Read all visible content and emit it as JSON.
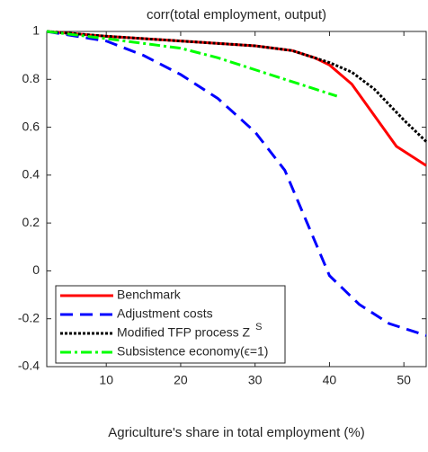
{
  "chart_data": {
    "type": "line",
    "title": "corr(total employment, output)",
    "x_label": "Agriculture's share in total employment (%)",
    "xlim": [
      2,
      53
    ],
    "xticks": [
      10,
      20,
      30,
      40,
      50
    ],
    "ylim": [
      -0.4,
      1
    ],
    "yticks": [
      -0.4,
      -0.2,
      0,
      0.2,
      0.4,
      0.6,
      0.8,
      1
    ],
    "legend": "lower left",
    "series": [
      {
        "name": "Benchmark",
        "color": "#ff0000",
        "style": "solid",
        "x": [
          2,
          10,
          20,
          30,
          35,
          38,
          40,
          43,
          46,
          49,
          53
        ],
        "values": [
          1,
          0.98,
          0.96,
          0.94,
          0.92,
          0.89,
          0.86,
          0.78,
          0.65,
          0.52,
          0.44
        ]
      },
      {
        "name": "Adjustment costs",
        "color": "#0000ff",
        "style": "dashed",
        "x": [
          2,
          10,
          15,
          20,
          25,
          30,
          34,
          37,
          40,
          44,
          48,
          53
        ],
        "values": [
          1,
          0.96,
          0.9,
          0.82,
          0.72,
          0.58,
          0.42,
          0.2,
          -0.02,
          -0.14,
          -0.22,
          -0.27
        ]
      },
      {
        "name": "Modified TFP process Z",
        "superscript": "S",
        "color": "#000000",
        "style": "dotted",
        "x": [
          2,
          10,
          20,
          30,
          35,
          38,
          40,
          43,
          46,
          50,
          53
        ],
        "values": [
          1,
          0.98,
          0.96,
          0.94,
          0.92,
          0.89,
          0.87,
          0.83,
          0.76,
          0.63,
          0.54
        ]
      },
      {
        "name": "Subsistence economy(ϵ=1)",
        "color": "#00ff00",
        "style": "dashdot",
        "x": [
          2,
          10,
          20,
          25,
          30,
          35,
          38,
          41
        ],
        "values": [
          1,
          0.97,
          0.93,
          0.89,
          0.84,
          0.79,
          0.76,
          0.73
        ]
      }
    ]
  }
}
